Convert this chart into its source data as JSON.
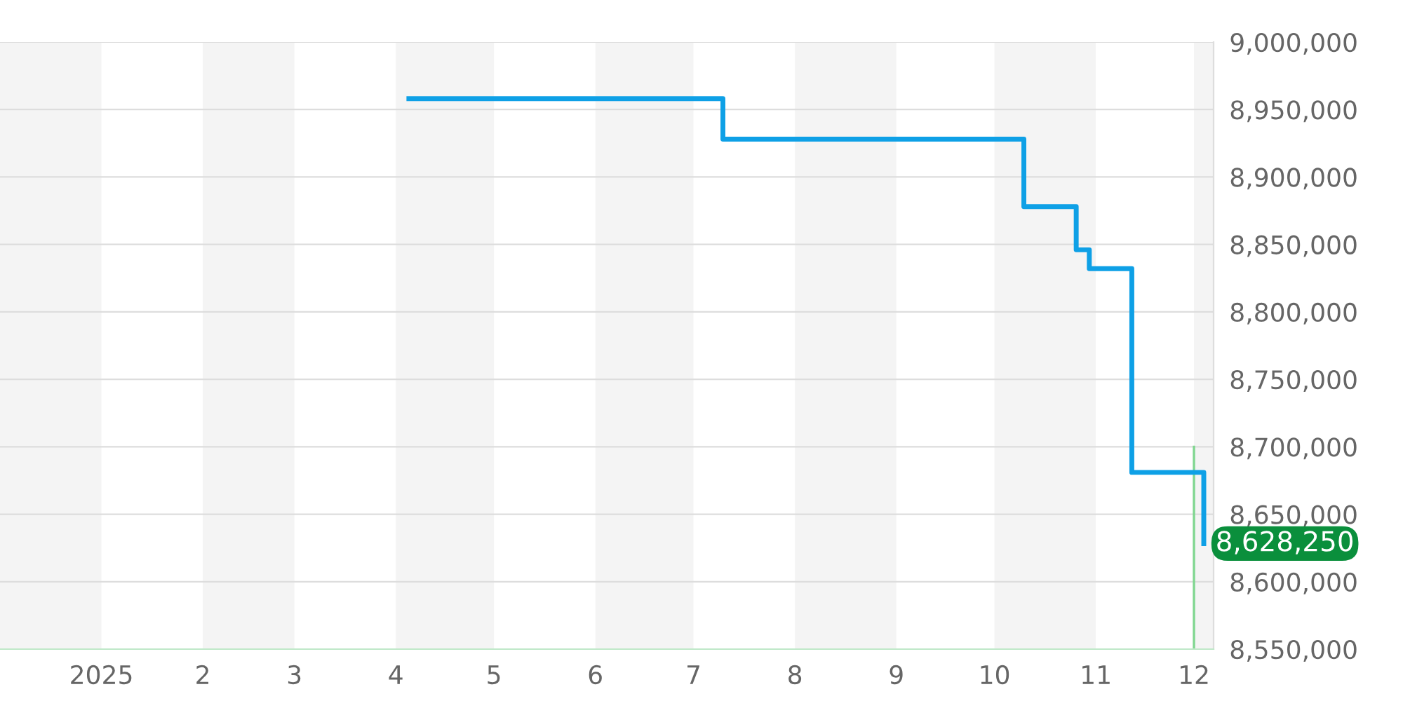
{
  "chart_data": {
    "type": "step",
    "series": [
      {
        "color": "#0ea0e6",
        "x": [
          "2025-04-05",
          "2025-07-10",
          "2025-10-10",
          "2025-10-26",
          "2025-10-30",
          "2025-11-12",
          "2025-12-04"
        ],
        "values": [
          8958000,
          8928000,
          8878000,
          8846000,
          8832000,
          8681000,
          8628250
        ]
      },
      {
        "type": "line",
        "color": "#7fd68f",
        "x": [
          "2025-12-01",
          "2025-12-01"
        ],
        "values": [
          8550000,
          8700000
        ]
      }
    ],
    "xlim": [
      "2024-12-01",
      "2025-12-07"
    ],
    "xticks": [
      {
        "value": "2025-01-01",
        "label": "2025"
      },
      {
        "value": "2025-02-01",
        "label": "2"
      },
      {
        "value": "2025-03-01",
        "label": "3"
      },
      {
        "value": "2025-04-01",
        "label": "4"
      },
      {
        "value": "2025-05-01",
        "label": "5"
      },
      {
        "value": "2025-06-01",
        "label": "6"
      },
      {
        "value": "2025-07-01",
        "label": "7"
      },
      {
        "value": "2025-08-01",
        "label": "8"
      },
      {
        "value": "2025-09-01",
        "label": "9"
      },
      {
        "value": "2025-10-01",
        "label": "10"
      },
      {
        "value": "2025-11-01",
        "label": "11"
      },
      {
        "value": "2025-12-01",
        "label": "12"
      }
    ],
    "ylim": [
      8550000,
      9000000
    ],
    "yticks": [
      {
        "value": 8550000,
        "label": "8,550,000"
      },
      {
        "value": 8600000,
        "label": "8,600,000"
      },
      {
        "value": 8650000,
        "label": "8,650,000"
      },
      {
        "value": 8700000,
        "label": "8,700,000"
      },
      {
        "value": 8750000,
        "label": "8,750,000"
      },
      {
        "value": 8800000,
        "label": "8,800,000"
      },
      {
        "value": 8850000,
        "label": "8,850,000"
      },
      {
        "value": 8900000,
        "label": "8,900,000"
      },
      {
        "value": 8950000,
        "label": "8,950,000"
      },
      {
        "value": 9000000,
        "label": "9,000,000"
      }
    ],
    "bands": [
      {
        "axis": "x",
        "from": "2024-12-01",
        "to": "2025-01-01",
        "color": "#f4f4f4"
      },
      {
        "axis": "x",
        "from": "2025-02-01",
        "to": "2025-03-01",
        "color": "#f4f4f4"
      },
      {
        "axis": "x",
        "from": "2025-04-01",
        "to": "2025-05-01",
        "color": "#f4f4f4"
      },
      {
        "axis": "x",
        "from": "2025-06-01",
        "to": "2025-07-01",
        "color": "#f4f4f4"
      },
      {
        "axis": "x",
        "from": "2025-08-01",
        "to": "2025-09-01",
        "color": "#f4f4f4"
      },
      {
        "axis": "x",
        "from": "2025-10-01",
        "to": "2025-11-01",
        "color": "#f4f4f4"
      },
      {
        "axis": "x",
        "from": "2025-12-01",
        "to": "2025-12-07",
        "color": "#f4f4f4"
      }
    ],
    "annotations": [
      {
        "text": "8,628,250",
        "x": "2025-12-04",
        "y": 8628250
      }
    ],
    "grid": "y",
    "legend": false,
    "marker": "none",
    "line_style": "solid"
  }
}
